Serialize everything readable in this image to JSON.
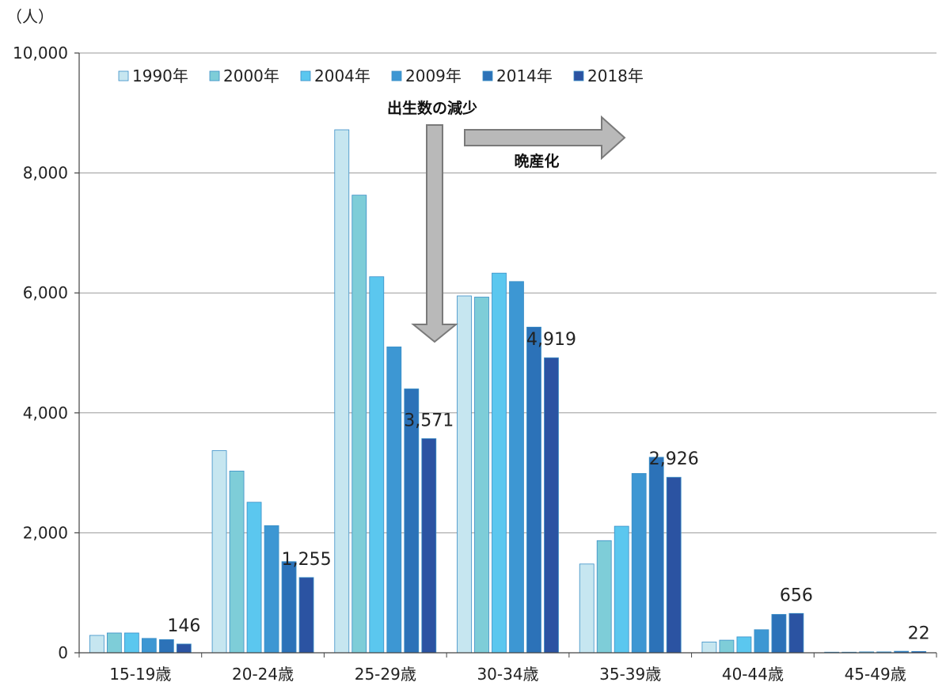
{
  "chart_data": {
    "type": "bar",
    "unit_label": "（人）",
    "categories": [
      "15-19歳",
      "20-24歳",
      "25-29歳",
      "30-34歳",
      "35-39歳",
      "40-44歳",
      "45-49歳"
    ],
    "series": [
      {
        "name": "1990年",
        "color": "#c6e6f0",
        "values": [
          290,
          3370,
          8720,
          5950,
          1480,
          180,
          10
        ]
      },
      {
        "name": "2000年",
        "color": "#7ecdd8",
        "values": [
          330,
          3030,
          7630,
          5930,
          1870,
          210,
          10
        ]
      },
      {
        "name": "2004年",
        "color": "#5bc7ef",
        "values": [
          330,
          2510,
          6270,
          6330,
          2110,
          265,
          15
        ]
      },
      {
        "name": "2009年",
        "color": "#3d97d3",
        "values": [
          240,
          2120,
          5100,
          6190,
          2990,
          385,
          15
        ]
      },
      {
        "name": "2014年",
        "color": "#2c72b8",
        "values": [
          220,
          1520,
          4400,
          5430,
          3260,
          640,
          25
        ]
      },
      {
        "name": "2018年",
        "color": "#2b53a2",
        "values": [
          146,
          1255,
          3571,
          4919,
          2926,
          656,
          22
        ]
      }
    ],
    "data_labels": [
      {
        "category": "15-19歳",
        "series": "2018年",
        "text": "146"
      },
      {
        "category": "20-24歳",
        "series": "2018年",
        "text": "1,255"
      },
      {
        "category": "25-29歳",
        "series": "2018年",
        "text": "3,571"
      },
      {
        "category": "30-34歳",
        "series": "2018年",
        "text": "4,919"
      },
      {
        "category": "35-39歳",
        "series": "2018年",
        "text": "2,926"
      },
      {
        "category": "40-44歳",
        "series": "2018年",
        "text": "656"
      },
      {
        "category": "45-49歳",
        "series": "2018年",
        "text": "22"
      }
    ],
    "yticks": [
      0,
      2000,
      4000,
      6000,
      8000,
      10000
    ],
    "ytick_labels": [
      "0",
      "2,000",
      "4,000",
      "6,000",
      "8,000",
      "10,000"
    ],
    "ylim": [
      0,
      10000
    ],
    "grid": true,
    "legend_position": "top-left",
    "annotations": [
      {
        "text": "出生数の減少",
        "arrow": "down"
      },
      {
        "text": "晩産化",
        "arrow": "right"
      }
    ]
  }
}
